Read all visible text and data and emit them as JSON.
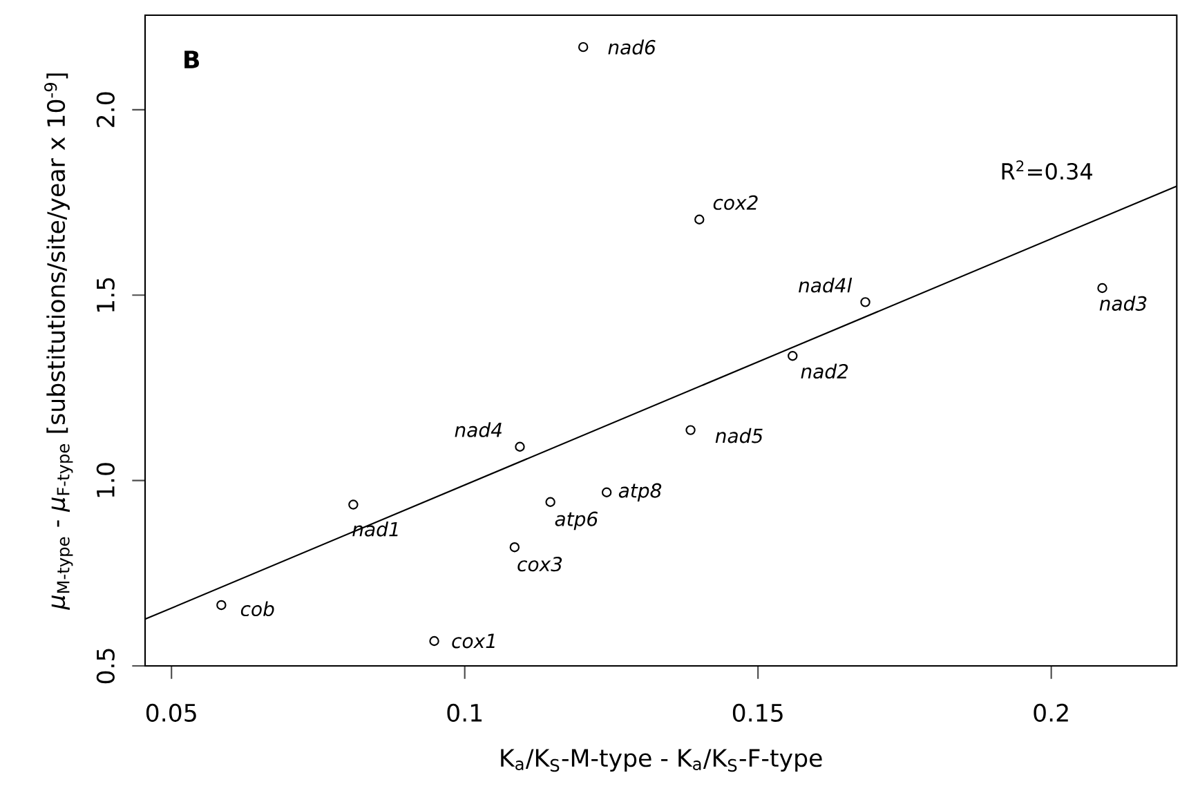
{
  "chart_data": {
    "type": "scatter",
    "xlabel": "K$_{a}$/K$_{S}$-M-type - K$_{a}$/K$_{S}$-F-type",
    "ylabel": "*μ*$_{M-type}$ - *μ*$_{F-type}$ [substitutions/site/year x 10$^{-9}$]",
    "xlim": [
      0.0455,
      0.2214
    ],
    "ylim": [
      0.5,
      2.255
    ],
    "xticks": [
      0.05,
      0.1,
      0.15,
      0.2
    ],
    "yticks": [
      {
        "value": 0.5,
        "label": "0.5"
      },
      {
        "value": 1.0,
        "label": "1.0"
      },
      {
        "value": 1.5,
        "label": "1.5"
      },
      {
        "value": 2.0,
        "label": "2.0"
      }
    ],
    "series": [
      {
        "marker": "circle",
        "color": "#000000",
        "x": [
          0.1202,
          0.14,
          0.1683,
          0.1559,
          0.2087,
          0.1094,
          0.081,
          0.1146,
          0.1085,
          0.0585,
          0.0948,
          0.1385,
          0.1242
        ],
        "values": [
          2.169,
          1.704,
          1.481,
          1.336,
          1.519,
          1.091,
          0.935,
          0.942,
          0.82,
          0.664,
          0.567,
          1.136,
          0.968
        ]
      },
      {
        "type": "line",
        "marker": "none",
        "color": "#000000",
        "x": [
          0.0455,
          0.2214
        ],
        "values": [
          0.626,
          1.794
        ]
      }
    ],
    "annotations": [
      "B",
      "R$^{2}$=0.34",
      {
        "text": "nad6",
        "x": 0.1202,
        "y": 2.169
      },
      {
        "text": "cox2",
        "x": 0.14,
        "y": 1.704
      },
      {
        "text": "nad4l",
        "x": 0.1683,
        "y": 1.481
      },
      {
        "text": "nad2",
        "x": 0.1559,
        "y": 1.336
      },
      {
        "text": "nad3",
        "x": 0.2087,
        "y": 1.519
      },
      {
        "text": "nad4",
        "x": 0.1094,
        "y": 1.091
      },
      {
        "text": "nad1",
        "x": 0.081,
        "y": 0.935
      },
      {
        "text": "atp6",
        "x": 0.1146,
        "y": 0.942
      },
      {
        "text": "cox3",
        "x": 0.1085,
        "y": 0.82
      },
      {
        "text": "cob",
        "x": 0.0585,
        "y": 0.664
      },
      {
        "text": "cox1",
        "x": 0.0948,
        "y": 0.567
      },
      {
        "text": "nad5",
        "x": 0.1385,
        "y": 1.136
      },
      {
        "text": "atp8",
        "x": 0.1242,
        "y": 0.968
      }
    ]
  }
}
